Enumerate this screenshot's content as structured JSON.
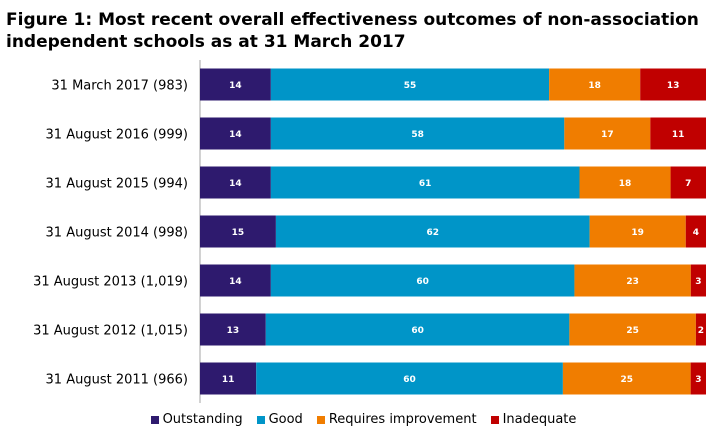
{
  "title": {
    "line1": "Figure 1: Most recent overall effectiveness outcomes of non-association",
    "line2": "independent schools as at 31 March 2017"
  },
  "chart_data": {
    "type": "bar",
    "orientation": "horizontal",
    "stacked": true,
    "categories": [
      "31 March 2017 (983)",
      "31 August 2016 (999)",
      "31 August 2015 (994)",
      "31 August 2014 (998)",
      "31 August 2013 (1,019)",
      "31 August 2012 (1,015)",
      "31 August 2011 (966)"
    ],
    "series": [
      {
        "name": "Outstanding",
        "color": "#2e1a6e",
        "values": [
          14,
          14,
          14,
          15,
          14,
          13,
          11
        ]
      },
      {
        "name": "Good",
        "color": "#0095c8",
        "values": [
          55,
          58,
          61,
          62,
          60,
          60,
          60
        ]
      },
      {
        "name": "Requires improvement",
        "color": "#f07d00",
        "values": [
          18,
          17,
          18,
          19,
          23,
          25,
          25
        ]
      },
      {
        "name": "Inadequate",
        "color": "#c00000",
        "values": [
          13,
          11,
          7,
          4,
          3,
          2,
          3
        ]
      }
    ],
    "xlim": [
      0,
      100
    ],
    "grid": false,
    "legend_position": "bottom"
  }
}
